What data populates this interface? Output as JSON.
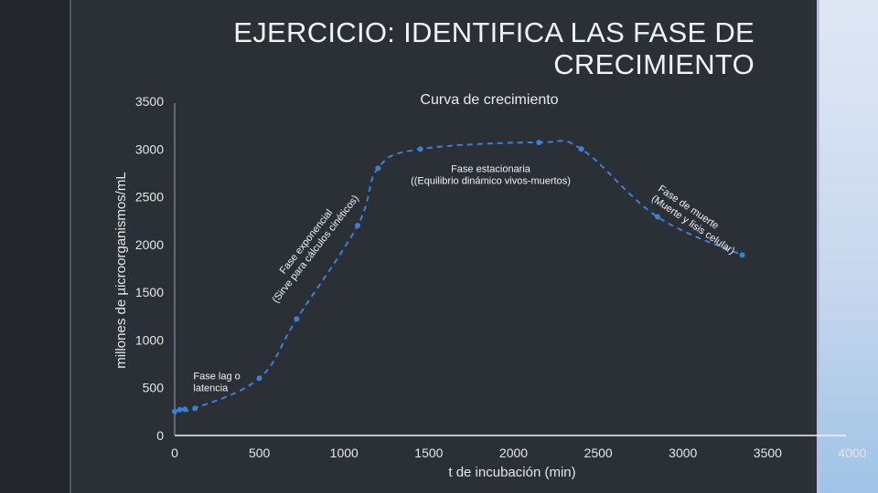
{
  "slide": {
    "title_line1": "EJERCICIO: IDENTIFICA LAS FASE DE",
    "title_line2": "CRECIMIENTO"
  },
  "chart_data": {
    "type": "line",
    "title": "Curva de crecimiento",
    "xlabel": "t de incubación  (min)",
    "ylabel": "millones de µicroorganismos/mL",
    "xlim": [
      0,
      4000
    ],
    "ylim": [
      0,
      3500
    ],
    "x_ticks": [
      0,
      500,
      1000,
      1500,
      2000,
      2500,
      3000,
      3500,
      4000
    ],
    "y_ticks": [
      0,
      500,
      1000,
      1500,
      2000,
      2500,
      3000,
      3500
    ],
    "grid": false,
    "legend": "none",
    "series": [
      {
        "x": [
          0,
          30,
          60,
          120,
          500,
          720,
          1080,
          1200,
          1450,
          2150,
          2400,
          2850,
          3350
        ],
        "y": [
          250,
          270,
          275,
          285,
          600,
          1220,
          2200,
          2800,
          3000,
          3070,
          3000,
          2290,
          1890
        ],
        "color": "#3b82d6"
      }
    ],
    "annotations": [
      {
        "lines": [
          "Fase lag o",
          "latencia"
        ],
        "at": [
          110,
          590
        ],
        "rotation": 0
      },
      {
        "lines": [
          "Fase exponencial",
          "(Sirve para cálculos cinéticos)"
        ],
        "at": [
          790,
          2010
        ],
        "rotation": -52
      },
      {
        "lines": [
          "Fase estacionaria",
          "((Equilibrio dinámico vivos-muertos)"
        ],
        "at": [
          1865,
          2760
        ],
        "rotation": 0
      },
      {
        "lines": [
          "Fase de muerte",
          "(Muerte y lisis celular)"
        ],
        "at": [
          2850,
          2570
        ],
        "rotation": 34
      }
    ]
  }
}
